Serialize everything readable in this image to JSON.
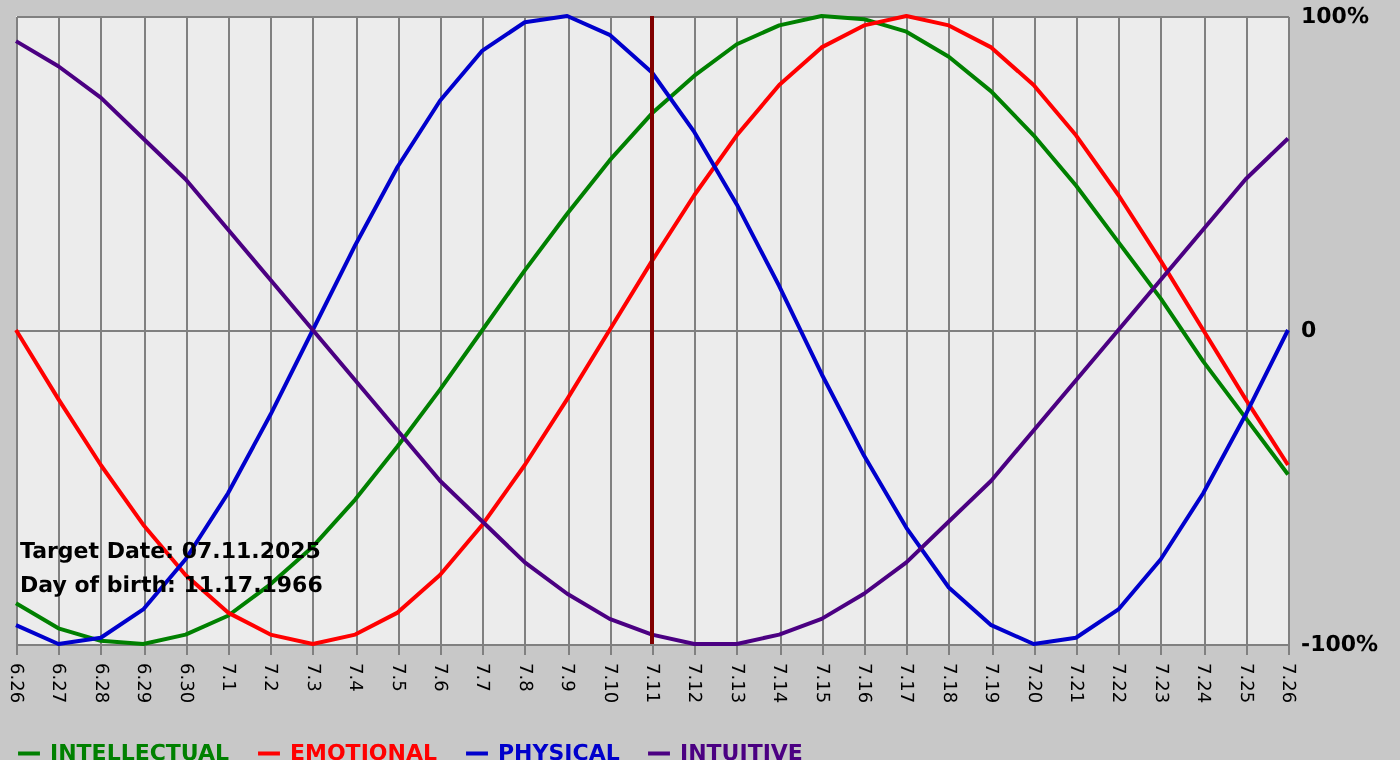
{
  "chart_data": {
    "type": "line",
    "categories": [
      "6.26",
      "6.27",
      "6.28",
      "6.29",
      "6.30",
      "7.1",
      "7.2",
      "7.3",
      "7.4",
      "7.5",
      "7.6",
      "7.7",
      "7.8",
      "7.9",
      "7.10",
      "7.11",
      "7.12",
      "7.13",
      "7.14",
      "7.15",
      "7.16",
      "7.17",
      "7.18",
      "7.19",
      "7.20",
      "7.21",
      "7.22",
      "7.23",
      "7.24",
      "7.25",
      "7.26"
    ],
    "series": [
      {
        "name": "INTELLECTUAL",
        "color": "#008000",
        "values": [
          -87,
          -95,
          -99,
          -100,
          -97,
          -91,
          -81,
          -69,
          -54,
          -37,
          -19,
          0,
          19,
          37,
          54,
          69,
          81,
          91,
          97,
          100,
          99,
          95,
          87,
          76,
          62,
          46,
          28,
          10,
          -10,
          -28,
          -46
        ]
      },
      {
        "name": "EMOTIONAL",
        "color": "#ff0000",
        "values": [
          0,
          -22,
          -43,
          -62,
          -78,
          -90,
          -97,
          -100,
          -97,
          -90,
          -78,
          -62,
          -43,
          -22,
          0,
          22,
          43,
          62,
          78,
          90,
          97,
          100,
          97,
          90,
          78,
          62,
          43,
          22,
          0,
          -22,
          -43
        ]
      },
      {
        "name": "PHYSICAL",
        "color": "#0000cc",
        "values": [
          -94,
          -100,
          -98,
          -89,
          -73,
          -52,
          -27,
          0,
          27,
          52,
          73,
          89,
          98,
          100,
          94,
          82,
          63,
          40,
          14,
          -14,
          -40,
          -63,
          -82,
          -94,
          -100,
          -98,
          -89,
          -73,
          -52,
          -27,
          0
        ]
      },
      {
        "name": "INTUITIVE",
        "color": "#4b0082",
        "values": [
          92,
          84,
          74,
          61,
          48,
          32,
          16,
          0,
          -16,
          -32,
          -48,
          -61,
          -74,
          -84,
          -92,
          -97,
          -100,
          -100,
          -97,
          -92,
          -84,
          -74,
          -61,
          -48,
          -32,
          -16,
          0,
          16,
          32,
          48,
          61
        ]
      }
    ],
    "ylim": [
      -100,
      100
    ],
    "yticks": [
      {
        "value": -100,
        "label": "-100%"
      },
      0,
      {
        "value": 100,
        "label": "100%"
      }
    ],
    "grid": true,
    "legend": "bottom left",
    "marker": "none",
    "line_style": "solid",
    "ref_lines": [
      {
        "axis": "x",
        "value": "7.11",
        "color": "#800000"
      }
    ],
    "annotations": [
      "Target Date: 07.11.2025",
      "Day of birth: 11.17.1966"
    ]
  }
}
